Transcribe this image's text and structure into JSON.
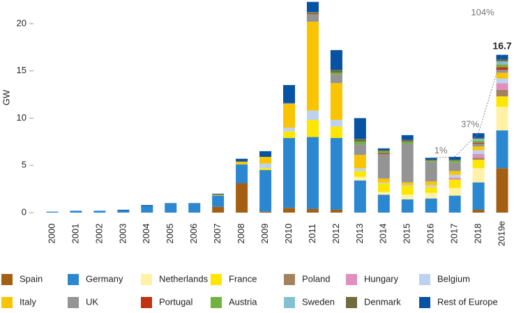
{
  "chart_data": {
    "type": "stacked-bar",
    "y_label": "GW",
    "categories": [
      "2000",
      "2001",
      "2002",
      "2003",
      "2004",
      "2005",
      "2006",
      "2007",
      "2008",
      "2009",
      "2010",
      "2011",
      "2012",
      "2013",
      "2014",
      "2015",
      "2016",
      "2017",
      "2018",
      "2019e"
    ],
    "ylim": [
      0,
      22.5
    ],
    "yticks": [
      0,
      5,
      10,
      15,
      20
    ],
    "series": [
      {
        "name": "Spain",
        "color": "#a45f12",
        "values": [
          0,
          0,
          0,
          0,
          0,
          0,
          0,
          0.6,
          3.1,
          0.1,
          0.5,
          0.4,
          0.3,
          0,
          0,
          0,
          0,
          0,
          0.3,
          4.7
        ]
      },
      {
        "name": "Germany",
        "color": "#2b88d0",
        "values": [
          0.1,
          0.2,
          0.2,
          0.2,
          0.7,
          0.95,
          0.95,
          1.2,
          2.0,
          4.4,
          7.4,
          7.6,
          7.6,
          3.4,
          1.9,
          1.4,
          1.5,
          1.8,
          2.9,
          4.0
        ]
      },
      {
        "name": "Netherlands",
        "color": "#fff2a6",
        "values": [
          0,
          0,
          0,
          0,
          0,
          0,
          0,
          0,
          0,
          0,
          0,
          0,
          0,
          0.4,
          0.3,
          0.5,
          0.6,
          0.8,
          1.5,
          2.5
        ]
      },
      {
        "name": "France",
        "color": "#ffe600",
        "values": [
          0,
          0,
          0,
          0,
          0,
          0,
          0,
          0,
          0,
          0.2,
          0.7,
          1.8,
          1.2,
          0.6,
          0.9,
          0.9,
          0.6,
          0.9,
          0.9,
          1.1
        ]
      },
      {
        "name": "Poland",
        "color": "#a3835f",
        "values": [
          0,
          0,
          0,
          0,
          0,
          0,
          0,
          0,
          0,
          0,
          0,
          0,
          0,
          0,
          0,
          0,
          0,
          0,
          0.2,
          0.7
        ]
      },
      {
        "name": "Hungary",
        "color": "#e08fc0",
        "values": [
          0,
          0,
          0,
          0,
          0,
          0,
          0,
          0,
          0,
          0,
          0,
          0,
          0,
          0,
          0,
          0,
          0,
          0.2,
          0.4,
          0.7
        ]
      },
      {
        "name": "Belgium",
        "color": "#bcd2f0",
        "values": [
          0,
          0,
          0,
          0,
          0,
          0,
          0,
          0,
          0,
          0.5,
          0.4,
          1.0,
          0.7,
          0.3,
          0.1,
          0.1,
          0.2,
          0.3,
          0.4,
          0.5
        ]
      },
      {
        "name": "Italy",
        "color": "#fbc400",
        "values": [
          0,
          0,
          0,
          0,
          0,
          0,
          0,
          0.1,
          0.3,
          0.7,
          2.5,
          9.4,
          3.9,
          1.4,
          0.4,
          0.3,
          0.4,
          0.4,
          0.4,
          0.6
        ]
      },
      {
        "name": "UK",
        "color": "#949494",
        "values": [
          0,
          0,
          0,
          0,
          0,
          0,
          0,
          0,
          0,
          0,
          0.1,
          0.8,
          0.9,
          1.1,
          2.6,
          4.1,
          2.1,
          0.9,
          0.3,
          0.3
        ]
      },
      {
        "name": "Portugal",
        "color": "#c23212",
        "values": [
          0,
          0,
          0,
          0,
          0,
          0,
          0,
          0,
          0,
          0,
          0,
          0.1,
          0,
          0,
          0.1,
          0,
          0,
          0,
          0.1,
          0.3
        ]
      },
      {
        "name": "Austria",
        "color": "#72b243",
        "values": [
          0,
          0,
          0,
          0,
          0,
          0,
          0,
          0,
          0,
          0,
          0,
          0.1,
          0.2,
          0.3,
          0.2,
          0.2,
          0.1,
          0.2,
          0.2,
          0.3
        ]
      },
      {
        "name": "Sweden",
        "color": "#82c2d0",
        "values": [
          0,
          0,
          0,
          0,
          0,
          0,
          0,
          0,
          0,
          0,
          0,
          0,
          0,
          0,
          0,
          0,
          0,
          0,
          0.2,
          0.3
        ]
      },
      {
        "name": "Denmark",
        "color": "#6f6d3e",
        "values": [
          0,
          0,
          0,
          0,
          0,
          0,
          0,
          0,
          0,
          0,
          0,
          0,
          0.3,
          0.3,
          0.1,
          0.2,
          0.1,
          0.1,
          0.1,
          0.2
        ]
      },
      {
        "name": "Rest of Europe",
        "color": "#0652a3",
        "values": [
          0,
          0,
          0,
          0.1,
          0.1,
          0.05,
          0.05,
          0.1,
          0.3,
          0.6,
          1.9,
          1.1,
          2.1,
          2.2,
          0.2,
          0.5,
          0.2,
          0.3,
          0.5,
          0.5
        ]
      }
    ],
    "growth_labels": [
      "1%",
      "37%",
      "104%"
    ],
    "total_label": "16.7"
  }
}
